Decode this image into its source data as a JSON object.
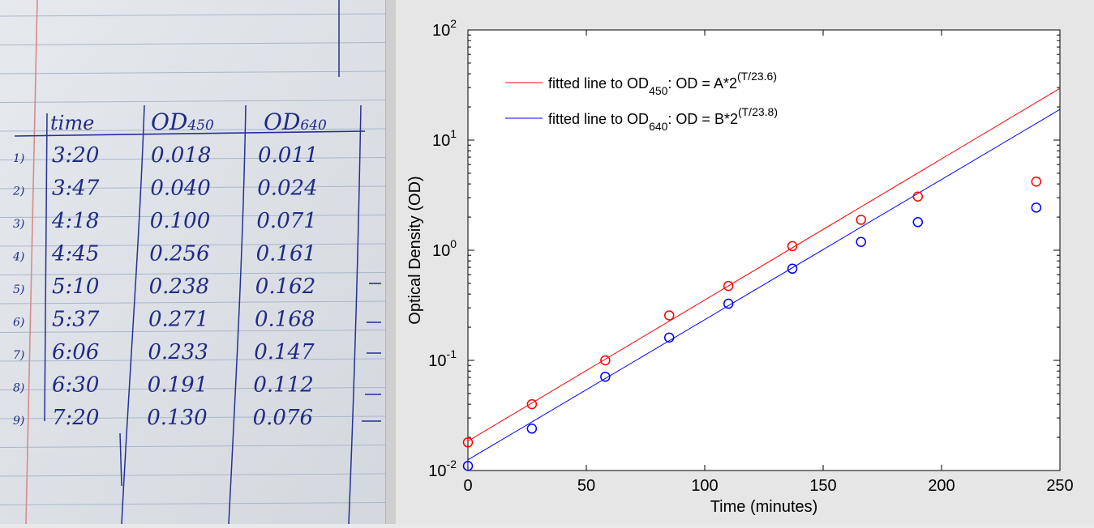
{
  "notebook": {
    "headers": [
      "time",
      "OD",
      "450",
      "OD",
      "640"
    ],
    "rows": [
      {
        "n": "1)",
        "time": "3:20",
        "od450": "0.018",
        "od640": "0.011"
      },
      {
        "n": "2)",
        "time": "3:47",
        "od450": "0.040",
        "od640": "0.024"
      },
      {
        "n": "3)",
        "time": "4:18",
        "od450": "0.100",
        "od640": "0.071"
      },
      {
        "n": "4)",
        "time": "4:45",
        "od450": "0.256",
        "od640": "0.161"
      },
      {
        "n": "5)",
        "time": "5:10",
        "od450": "0.238",
        "od640": "0.162"
      },
      {
        "n": "6)",
        "time": "5:37",
        "od450": "0.271",
        "od640": "0.168"
      },
      {
        "n": "7)",
        "time": "6:06",
        "od450": "0.233",
        "od640": "0.147"
      },
      {
        "n": "8)",
        "time": "6:30",
        "od450": "0.191",
        "od640": "0.112"
      },
      {
        "n": "9)",
        "time": "7:20",
        "od450": "0.130",
        "od640": "0.076"
      }
    ]
  },
  "chart_data": {
    "type": "scatter",
    "xlabel": "Time (minutes)",
    "ylabel": "Optical Density (OD)",
    "xlim": [
      0,
      250
    ],
    "ylim": [
      0.01,
      100
    ],
    "yscale": "log",
    "xticks": [
      "0",
      "50",
      "100",
      "150",
      "200",
      "250"
    ],
    "yticks": [
      {
        "base": "10",
        "exp": "-2",
        "value": 0.01
      },
      {
        "base": "10",
        "exp": "-1",
        "value": 0.1
      },
      {
        "base": "10",
        "exp": "0",
        "value": 1
      },
      {
        "base": "10",
        "exp": "1",
        "value": 10
      },
      {
        "base": "10",
        "exp": "2",
        "value": 100
      }
    ],
    "grid": false,
    "legend_position": "top-left",
    "series": [
      {
        "color": "#ff0000",
        "marker": "circle",
        "x": [
          0,
          27,
          58,
          85,
          110,
          137,
          166,
          190,
          240
        ],
        "y": [
          0.018,
          0.04,
          0.1,
          0.256,
          0.474,
          1.09,
          1.89,
          3.07,
          4.2
        ]
      },
      {
        "color": "#0000ff",
        "marker": "circle",
        "x": [
          0,
          27,
          58,
          85,
          110,
          137,
          166,
          190,
          240
        ],
        "y": [
          0.011,
          0.024,
          0.071,
          0.161,
          0.327,
          0.68,
          1.19,
          1.8,
          2.44
        ]
      }
    ],
    "fit_lines": [
      {
        "color": "#ff0000",
        "label_prefix": "fitted line to OD",
        "label_sub": "450",
        "label_mid": ": OD = A*2",
        "label_sup": "(T/23.6)",
        "x": [
          0,
          250
        ],
        "y": [
          0.0185,
          29.5
        ]
      },
      {
        "color": "#0000ff",
        "label_prefix": "fitted line to OD",
        "label_sub": "640",
        "label_mid": ": OD = B*2",
        "label_sup": "(T/23.8)",
        "x": [
          0,
          250
        ],
        "y": [
          0.0125,
          19.0
        ]
      }
    ]
  }
}
